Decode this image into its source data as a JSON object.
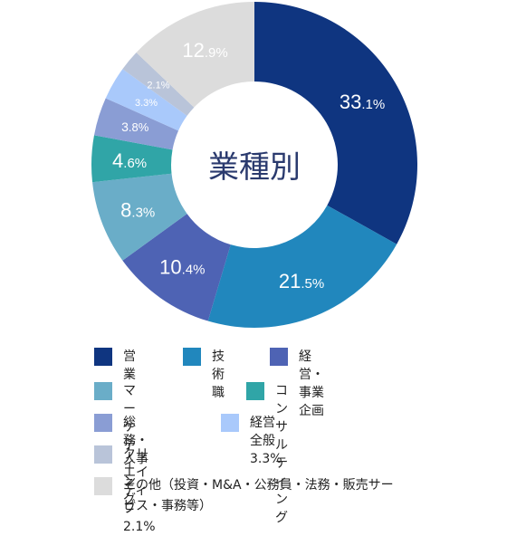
{
  "chart_data": {
    "type": "pie",
    "title": "業種別",
    "slices": [
      {
        "label": "営業",
        "value": 33.1,
        "display": [
          "33",
          ".1%"
        ],
        "color": "#0f3580"
      },
      {
        "label": "技術職",
        "value": 21.5,
        "display": [
          "21",
          ".5%"
        ],
        "color": "#2187bd"
      },
      {
        "label": "経営・事業企画",
        "value": 10.4,
        "display": [
          "10",
          ".4%"
        ],
        "color": "#4e63b4"
      },
      {
        "label": "マーケティング",
        "value": 8.3,
        "display": [
          "8",
          ".3%"
        ],
        "color": "#6aadc8"
      },
      {
        "label": "コンサルティング",
        "value": 4.6,
        "display": [
          "4",
          ".6%"
        ],
        "color": "#30a5a7"
      },
      {
        "label": "総務・人事",
        "value": 3.8,
        "display": [
          "3",
          ".8%"
        ],
        "color": "#8a9dd4"
      },
      {
        "label": "経営全般",
        "value": 3.3,
        "display": [
          "3",
          ".3%"
        ],
        "color": "#a9c9fb"
      },
      {
        "label": "クリエイティブ",
        "value": 2.1,
        "display": [
          "2",
          ".1%"
        ],
        "color": "#b9c4d9"
      },
      {
        "label": "その他（投資・M&A・公務員・法務・販売サービス・事務等）",
        "value": 12.9,
        "display": [
          "12",
          ".9%"
        ],
        "color": "#dcdcdc"
      }
    ]
  },
  "legend": [
    {
      "text": "営業",
      "color": "#0f3580"
    },
    {
      "text": "技術職",
      "color": "#2187bd"
    },
    {
      "text": "経営・事業企画",
      "color": "#4e63b4"
    },
    {
      "text": "マーケティング",
      "color": "#6aadc8"
    },
    {
      "text": "コンサルティング",
      "color": "#30a5a7"
    },
    {
      "text": "総務・人事",
      "color": "#8a9dd4"
    },
    {
      "text": "経営全般 3.3%",
      "color": "#a9c9fb"
    },
    {
      "text": "クリエイティブ 2.1%",
      "color": "#b9c4d9"
    },
    {
      "text": "その他（投資・M&A・公務員・法務・販売サービス・事務等）",
      "color": "#dcdcdc"
    }
  ]
}
